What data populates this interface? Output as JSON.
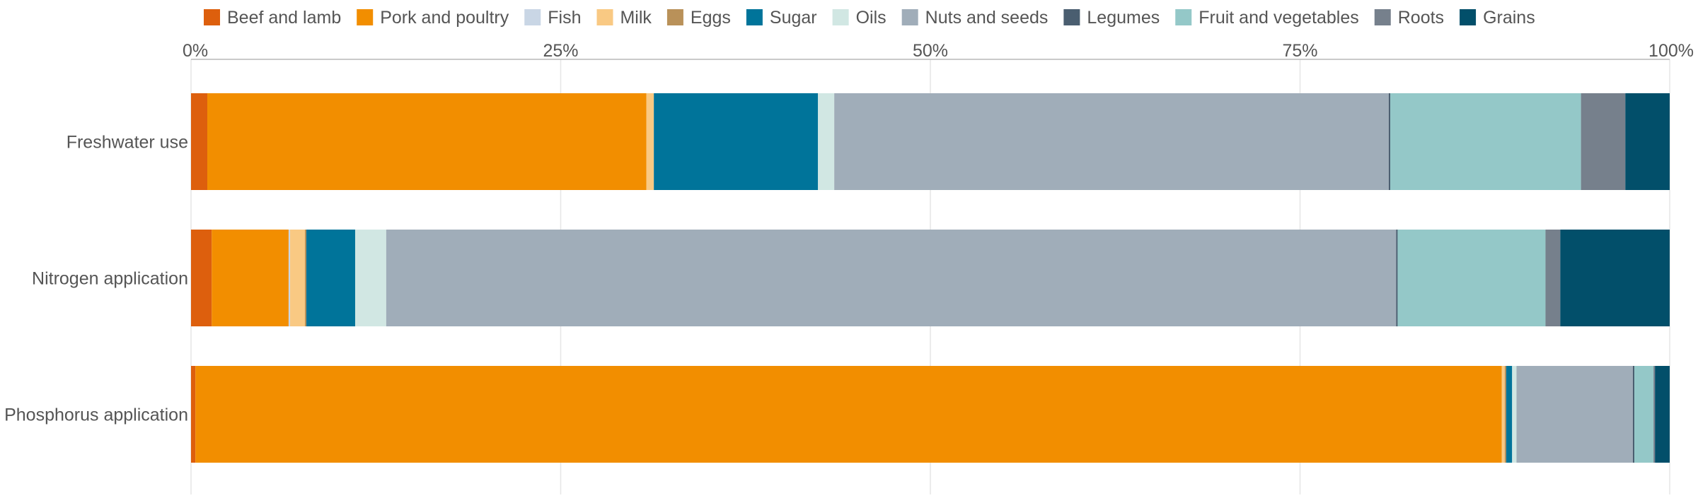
{
  "chart_data": {
    "type": "bar",
    "orientation": "horizontal",
    "stacked": true,
    "normalized": true,
    "title": "",
    "xlabel": "",
    "ylabel": "",
    "xlim": [
      0,
      100
    ],
    "x_ticks": [
      "0%",
      "25%",
      "50%",
      "75%",
      "100%"
    ],
    "grid": true,
    "legend_position": "top",
    "categories": [
      "Freshwater use",
      "Nitrogen application",
      "Phosphorus application"
    ],
    "series": [
      {
        "name": "Beef and lamb",
        "color": "#dd5f0d",
        "values": [
          1.1,
          1.4,
          0.3
        ]
      },
      {
        "name": "Pork and poultry",
        "color": "#f28e00",
        "values": [
          29.7,
          5.2,
          88.7
        ]
      },
      {
        "name": "Fish",
        "color": "#c9d6e5",
        "values": [
          0.0,
          0.1,
          0.0
        ]
      },
      {
        "name": "Milk",
        "color": "#f9c983",
        "values": [
          0.5,
          1.0,
          0.2
        ]
      },
      {
        "name": "Eggs",
        "color": "#b99159",
        "values": [
          0.0,
          0.1,
          0.1
        ]
      },
      {
        "name": "Sugar",
        "color": "#00749a",
        "values": [
          11.1,
          3.3,
          0.4
        ]
      },
      {
        "name": "Oils",
        "color": "#d1e7e3",
        "values": [
          1.1,
          2.1,
          0.3
        ]
      },
      {
        "name": "Nuts and seeds",
        "color": "#a0adb9",
        "values": [
          37.5,
          68.3,
          7.9
        ]
      },
      {
        "name": "Legumes",
        "color": "#4a5e70",
        "values": [
          0.1,
          0.1,
          0.1
        ]
      },
      {
        "name": "Fruit and vegetables",
        "color": "#94c8c8",
        "values": [
          12.9,
          10.0,
          1.3
        ]
      },
      {
        "name": "Roots",
        "color": "#76808c",
        "values": [
          3.0,
          1.0,
          0.1
        ]
      },
      {
        "name": "Grains",
        "color": "#024f6a",
        "values": [
          3.0,
          7.4,
          1.0
        ]
      }
    ]
  }
}
